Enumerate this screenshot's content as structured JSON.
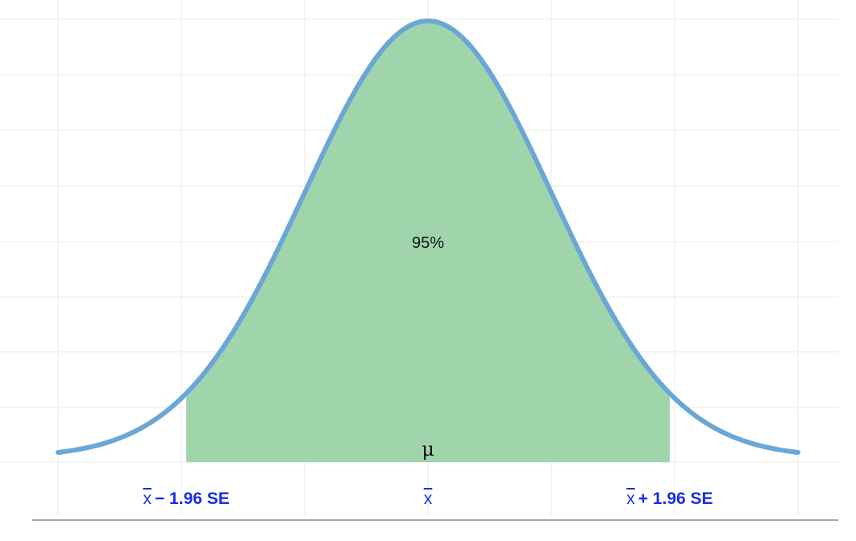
{
  "chart_data": {
    "type": "area",
    "distribution": "normal",
    "mean": 0,
    "sd": 1,
    "x_range": [
      -3,
      3
    ],
    "shaded_interval": [
      -1.96,
      1.96
    ],
    "shaded_label": "95%",
    "center_label": "μ",
    "tick_labels": [
      {
        "x": -1.96,
        "bar": "x",
        "text": "− 1.96 SE"
      },
      {
        "x": 0,
        "bar": "x",
        "text": ""
      },
      {
        "x": 1.96,
        "bar": "x",
        "text": "+ 1.96 SE"
      }
    ],
    "grid": true,
    "colors": {
      "curve": "#6aa7d6",
      "shade": "#a0d5ac",
      "tick_text": "#1a2ee6"
    }
  }
}
